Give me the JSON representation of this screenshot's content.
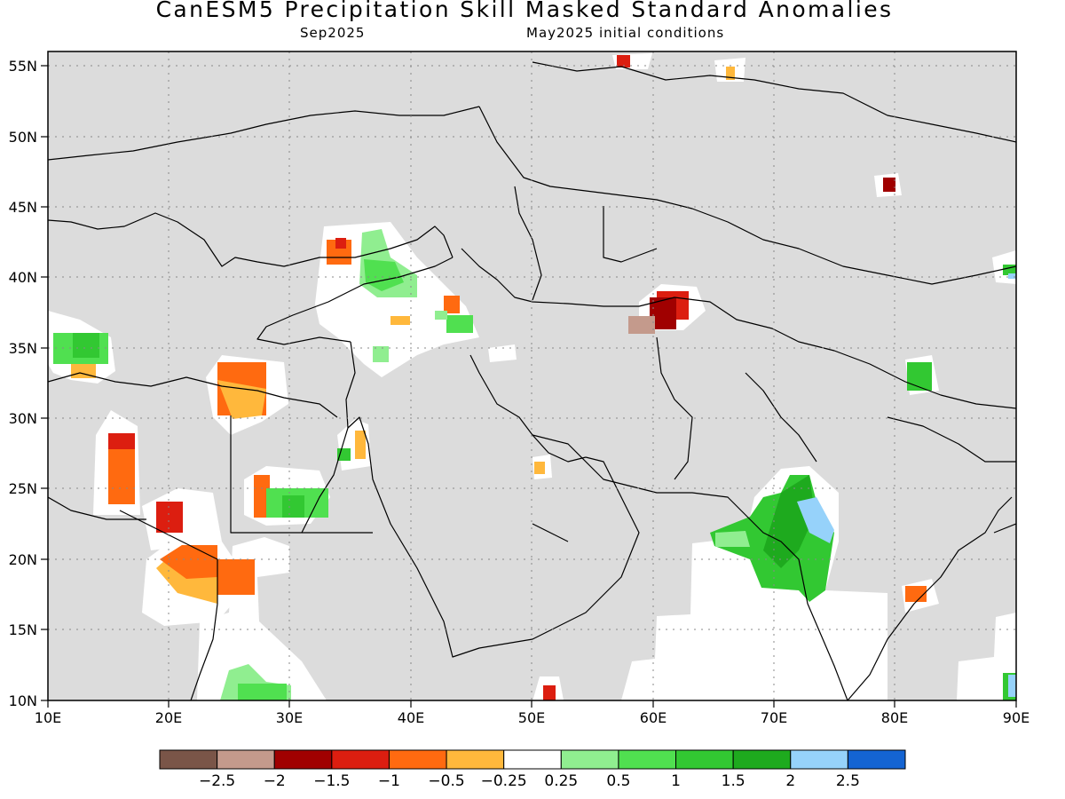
{
  "header": {
    "title": "CanESM5 Precipitation Skill Masked Standard Anomalies",
    "target_month": "Sep2025",
    "initial_conditions": "May2025 initial conditions"
  },
  "axes": {
    "lon_labels": [
      "10E",
      "20E",
      "30E",
      "40E",
      "50E",
      "60E",
      "70E",
      "80E",
      "90E"
    ],
    "lat_labels": [
      "55N",
      "50N",
      "45N",
      "40N",
      "35N",
      "30N",
      "25N",
      "20N",
      "15N",
      "10N"
    ],
    "lon_range": [
      10,
      90
    ],
    "lat_range": [
      10,
      56
    ],
    "grid": "dotted"
  },
  "legend": {
    "colors": [
      "#7a5548",
      "#c49a8c",
      "#a00000",
      "#dc1e10",
      "#ff6a10",
      "#ffb83c",
      "#ffffff",
      "#90ee90",
      "#50e050",
      "#32c832",
      "#1eaa1e",
      "#96d2fa",
      "#1464d2"
    ],
    "labels": [
      "−2.5",
      "−2",
      "−1.5",
      "−1",
      "−0.5",
      "−0.25",
      "0.25",
      "0.5",
      "1",
      "1.5",
      "2",
      "2.5"
    ]
  },
  "colors": {
    "masked_gray": "#dcdcdc",
    "no_skill_white": "#ffffff",
    "coastline": "#000000"
  }
}
